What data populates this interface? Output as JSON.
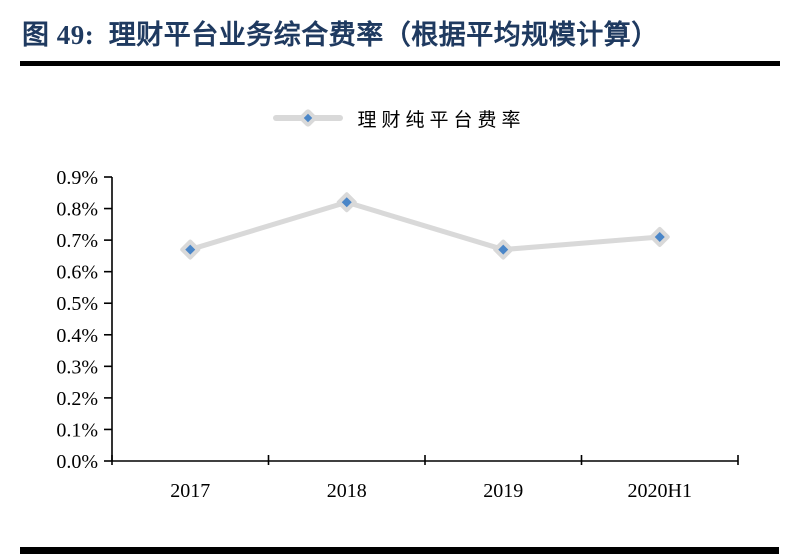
{
  "figure": {
    "number_title": "图 49:  理财平台业务综合费率（根据平均规模计算）"
  },
  "chart_data": {
    "type": "line",
    "title": "理财平台业务综合费率（根据平均规模计算）",
    "categories": [
      "2017",
      "2018",
      "2019",
      "2020H1"
    ],
    "series": [
      {
        "name": "理财纯平台费率",
        "values": [
          0.67,
          0.82,
          0.67,
          0.71
        ]
      }
    ],
    "unit": "%",
    "xlabel": "",
    "ylabel": "",
    "ylim": [
      0.0,
      0.9
    ],
    "ytick_step": 0.1,
    "ytick_labels": [
      "0.0%",
      "0.1%",
      "0.2%",
      "0.3%",
      "0.4%",
      "0.5%",
      "0.6%",
      "0.7%",
      "0.8%",
      "0.9%"
    ],
    "grid": false,
    "legend_position": "top-center",
    "marker": "diamond",
    "colors": {
      "title": "#1f3a60",
      "axis": "#000000",
      "line": "#d9d9d9",
      "marker_outer": "#d9d9d9",
      "marker_inner": "#4a86c8",
      "rule": "#000000"
    }
  }
}
